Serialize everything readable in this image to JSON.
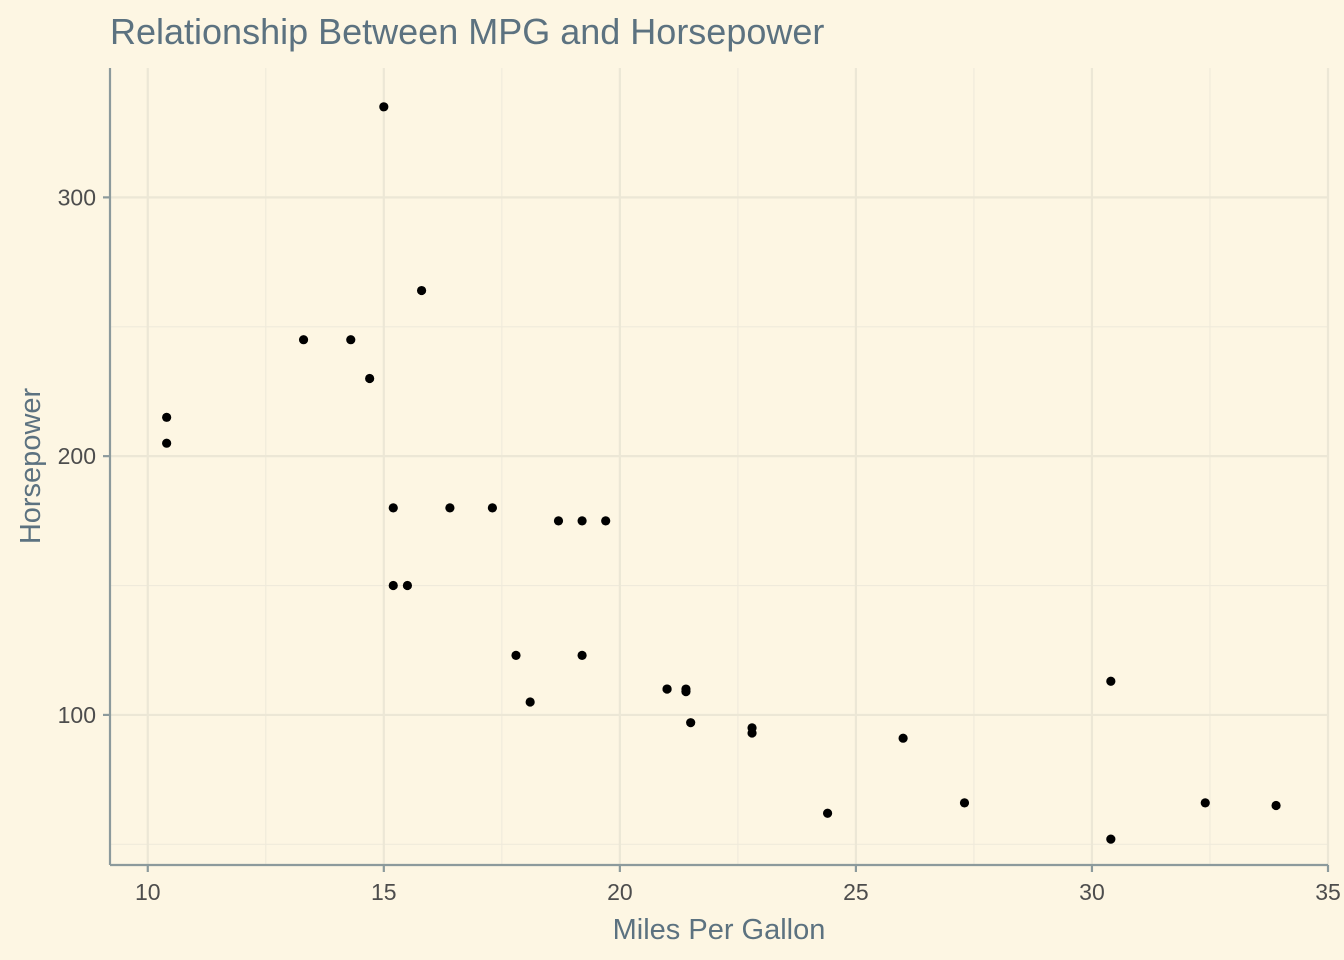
{
  "chart_data": {
    "type": "scatter",
    "title": "Relationship Between MPG and Horsepower",
    "xlabel": "Miles Per Gallon",
    "ylabel": "Horsepower",
    "xlim": [
      9.2,
      35
    ],
    "ylim": [
      42,
      350
    ],
    "x_ticks": [
      10,
      15,
      20,
      25,
      30,
      35
    ],
    "x_tick_labels": [
      "10",
      "15",
      "20",
      "25",
      "30",
      "35"
    ],
    "y_ticks": [
      100,
      200,
      300
    ],
    "y_tick_labels": [
      "100",
      "200",
      "300"
    ],
    "x_minor_ticks": [
      12.5,
      17.5,
      22.5,
      27.5,
      32.5
    ],
    "y_minor_ticks": [
      50,
      150,
      250
    ],
    "grid": true,
    "point_color": "#000000",
    "background": "#fdf6e3",
    "points": [
      {
        "x": 21.0,
        "y": 110
      },
      {
        "x": 21.0,
        "y": 110
      },
      {
        "x": 22.8,
        "y": 93
      },
      {
        "x": 21.4,
        "y": 110
      },
      {
        "x": 18.7,
        "y": 175
      },
      {
        "x": 18.1,
        "y": 105
      },
      {
        "x": 14.3,
        "y": 245
      },
      {
        "x": 24.4,
        "y": 62
      },
      {
        "x": 22.8,
        "y": 95
      },
      {
        "x": 19.2,
        "y": 123
      },
      {
        "x": 17.8,
        "y": 123
      },
      {
        "x": 16.4,
        "y": 180
      },
      {
        "x": 17.3,
        "y": 180
      },
      {
        "x": 15.2,
        "y": 180
      },
      {
        "x": 10.4,
        "y": 205
      },
      {
        "x": 10.4,
        "y": 215
      },
      {
        "x": 14.7,
        "y": 230
      },
      {
        "x": 32.4,
        "y": 66
      },
      {
        "x": 30.4,
        "y": 52
      },
      {
        "x": 33.9,
        "y": 65
      },
      {
        "x": 21.5,
        "y": 97
      },
      {
        "x": 15.5,
        "y": 150
      },
      {
        "x": 15.2,
        "y": 150
      },
      {
        "x": 13.3,
        "y": 245
      },
      {
        "x": 19.2,
        "y": 175
      },
      {
        "x": 27.3,
        "y": 66
      },
      {
        "x": 26.0,
        "y": 91
      },
      {
        "x": 30.4,
        "y": 113
      },
      {
        "x": 15.8,
        "y": 264
      },
      {
        "x": 19.7,
        "y": 175
      },
      {
        "x": 15.0,
        "y": 335
      },
      {
        "x": 21.4,
        "y": 109
      }
    ]
  }
}
